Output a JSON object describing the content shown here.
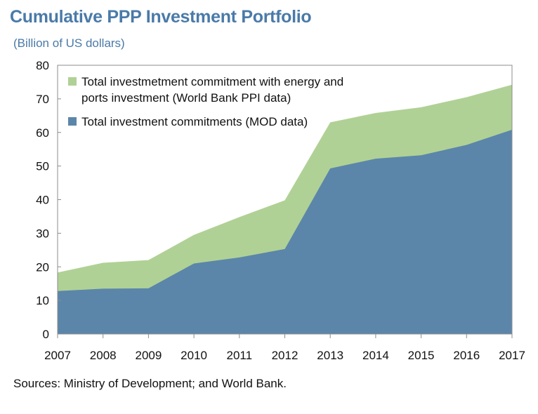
{
  "title": "Cumulative PPP Investment Portfolio",
  "subtitle": "(Billion of US dollars)",
  "source": "Sources: Ministry of Development; and World Bank.",
  "colors": {
    "green": "#b0d195",
    "blue": "#5b86aa",
    "axis": "#8c8c8c"
  },
  "chart_data": {
    "type": "area",
    "x": [
      "2007",
      "2008",
      "2009",
      "2010",
      "2011",
      "2012",
      "2013",
      "2014",
      "2015",
      "2016",
      "2017"
    ],
    "ylim": [
      0,
      80
    ],
    "yticks": [
      "0",
      "10",
      "20",
      "30",
      "40",
      "50",
      "60",
      "70",
      "80"
    ],
    "grid": false,
    "legend_position": "top-left",
    "series": [
      {
        "name": "Total investmetment commitment with energy and ports investment (World Bank PPI data)",
        "legend_lines": [
          "Total investmetment commitment with energy and",
          "ports investment (World Bank PPI data)"
        ],
        "values": [
          18.3,
          21.2,
          22.0,
          29.5,
          34.8,
          39.8,
          63.0,
          65.8,
          67.5,
          70.5,
          74.2
        ],
        "color": "#b0d195"
      },
      {
        "name": "Total investment commitments (MOD data)",
        "legend_lines": [
          "Total investment commitments (MOD data)"
        ],
        "values": [
          12.8,
          13.5,
          13.6,
          21.0,
          22.8,
          25.3,
          49.3,
          52.2,
          53.2,
          56.3,
          60.8
        ],
        "color": "#5b86aa"
      }
    ]
  }
}
